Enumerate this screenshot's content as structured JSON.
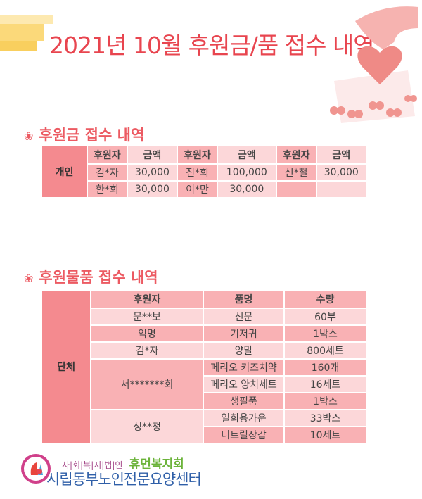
{
  "title": "2021년 10월 후원금/품 접수 내역",
  "colors": {
    "title": "#e8454f",
    "dark_cell": "#f48a8f",
    "mid_cell": "#f9b1b4",
    "light_cell": "#fcd7d9"
  },
  "money": {
    "heading": "후원금 접수 내역",
    "icon": "flower-icon",
    "group": "개인",
    "headers": [
      "후원자",
      "금액",
      "후원자",
      "금액",
      "후원자",
      "금액"
    ],
    "rows": [
      [
        "김*자",
        "30,000",
        "진*희",
        "100,000",
        "신*철",
        "30,000"
      ],
      [
        "한*희",
        "30,000",
        "이*만",
        "30,000",
        "",
        ""
      ]
    ]
  },
  "goods": {
    "heading": "후원물품 접수 내역",
    "icon": "flower-icon",
    "group": "단체",
    "headers": [
      "후원자",
      "품명",
      "수량"
    ],
    "donors": [
      {
        "name": "문**보",
        "items": [
          {
            "item": "신문",
            "qty": "60부"
          }
        ]
      },
      {
        "name": "익명",
        "items": [
          {
            "item": "기저귀",
            "qty": "1박스"
          }
        ]
      },
      {
        "name": "김*자",
        "items": [
          {
            "item": "양말",
            "qty": "800세트"
          }
        ]
      },
      {
        "name": "서*******회",
        "items": [
          {
            "item": "페리오 키즈치약",
            "qty": "160개"
          },
          {
            "item": "페리오 양치세트",
            "qty": "16세트"
          },
          {
            "item": "생필품",
            "qty": "1박스"
          }
        ]
      },
      {
        "name": "성**청",
        "items": [
          {
            "item": "일회용가운",
            "qty": "33박스"
          },
          {
            "item": "니트릴장갑",
            "qty": "10세트"
          }
        ]
      }
    ]
  },
  "footer": {
    "org_prefix": "사|회|복|지|법|인",
    "org_name": "휴먼복지회",
    "center_name": "시립동부노인전문요양센터"
  }
}
